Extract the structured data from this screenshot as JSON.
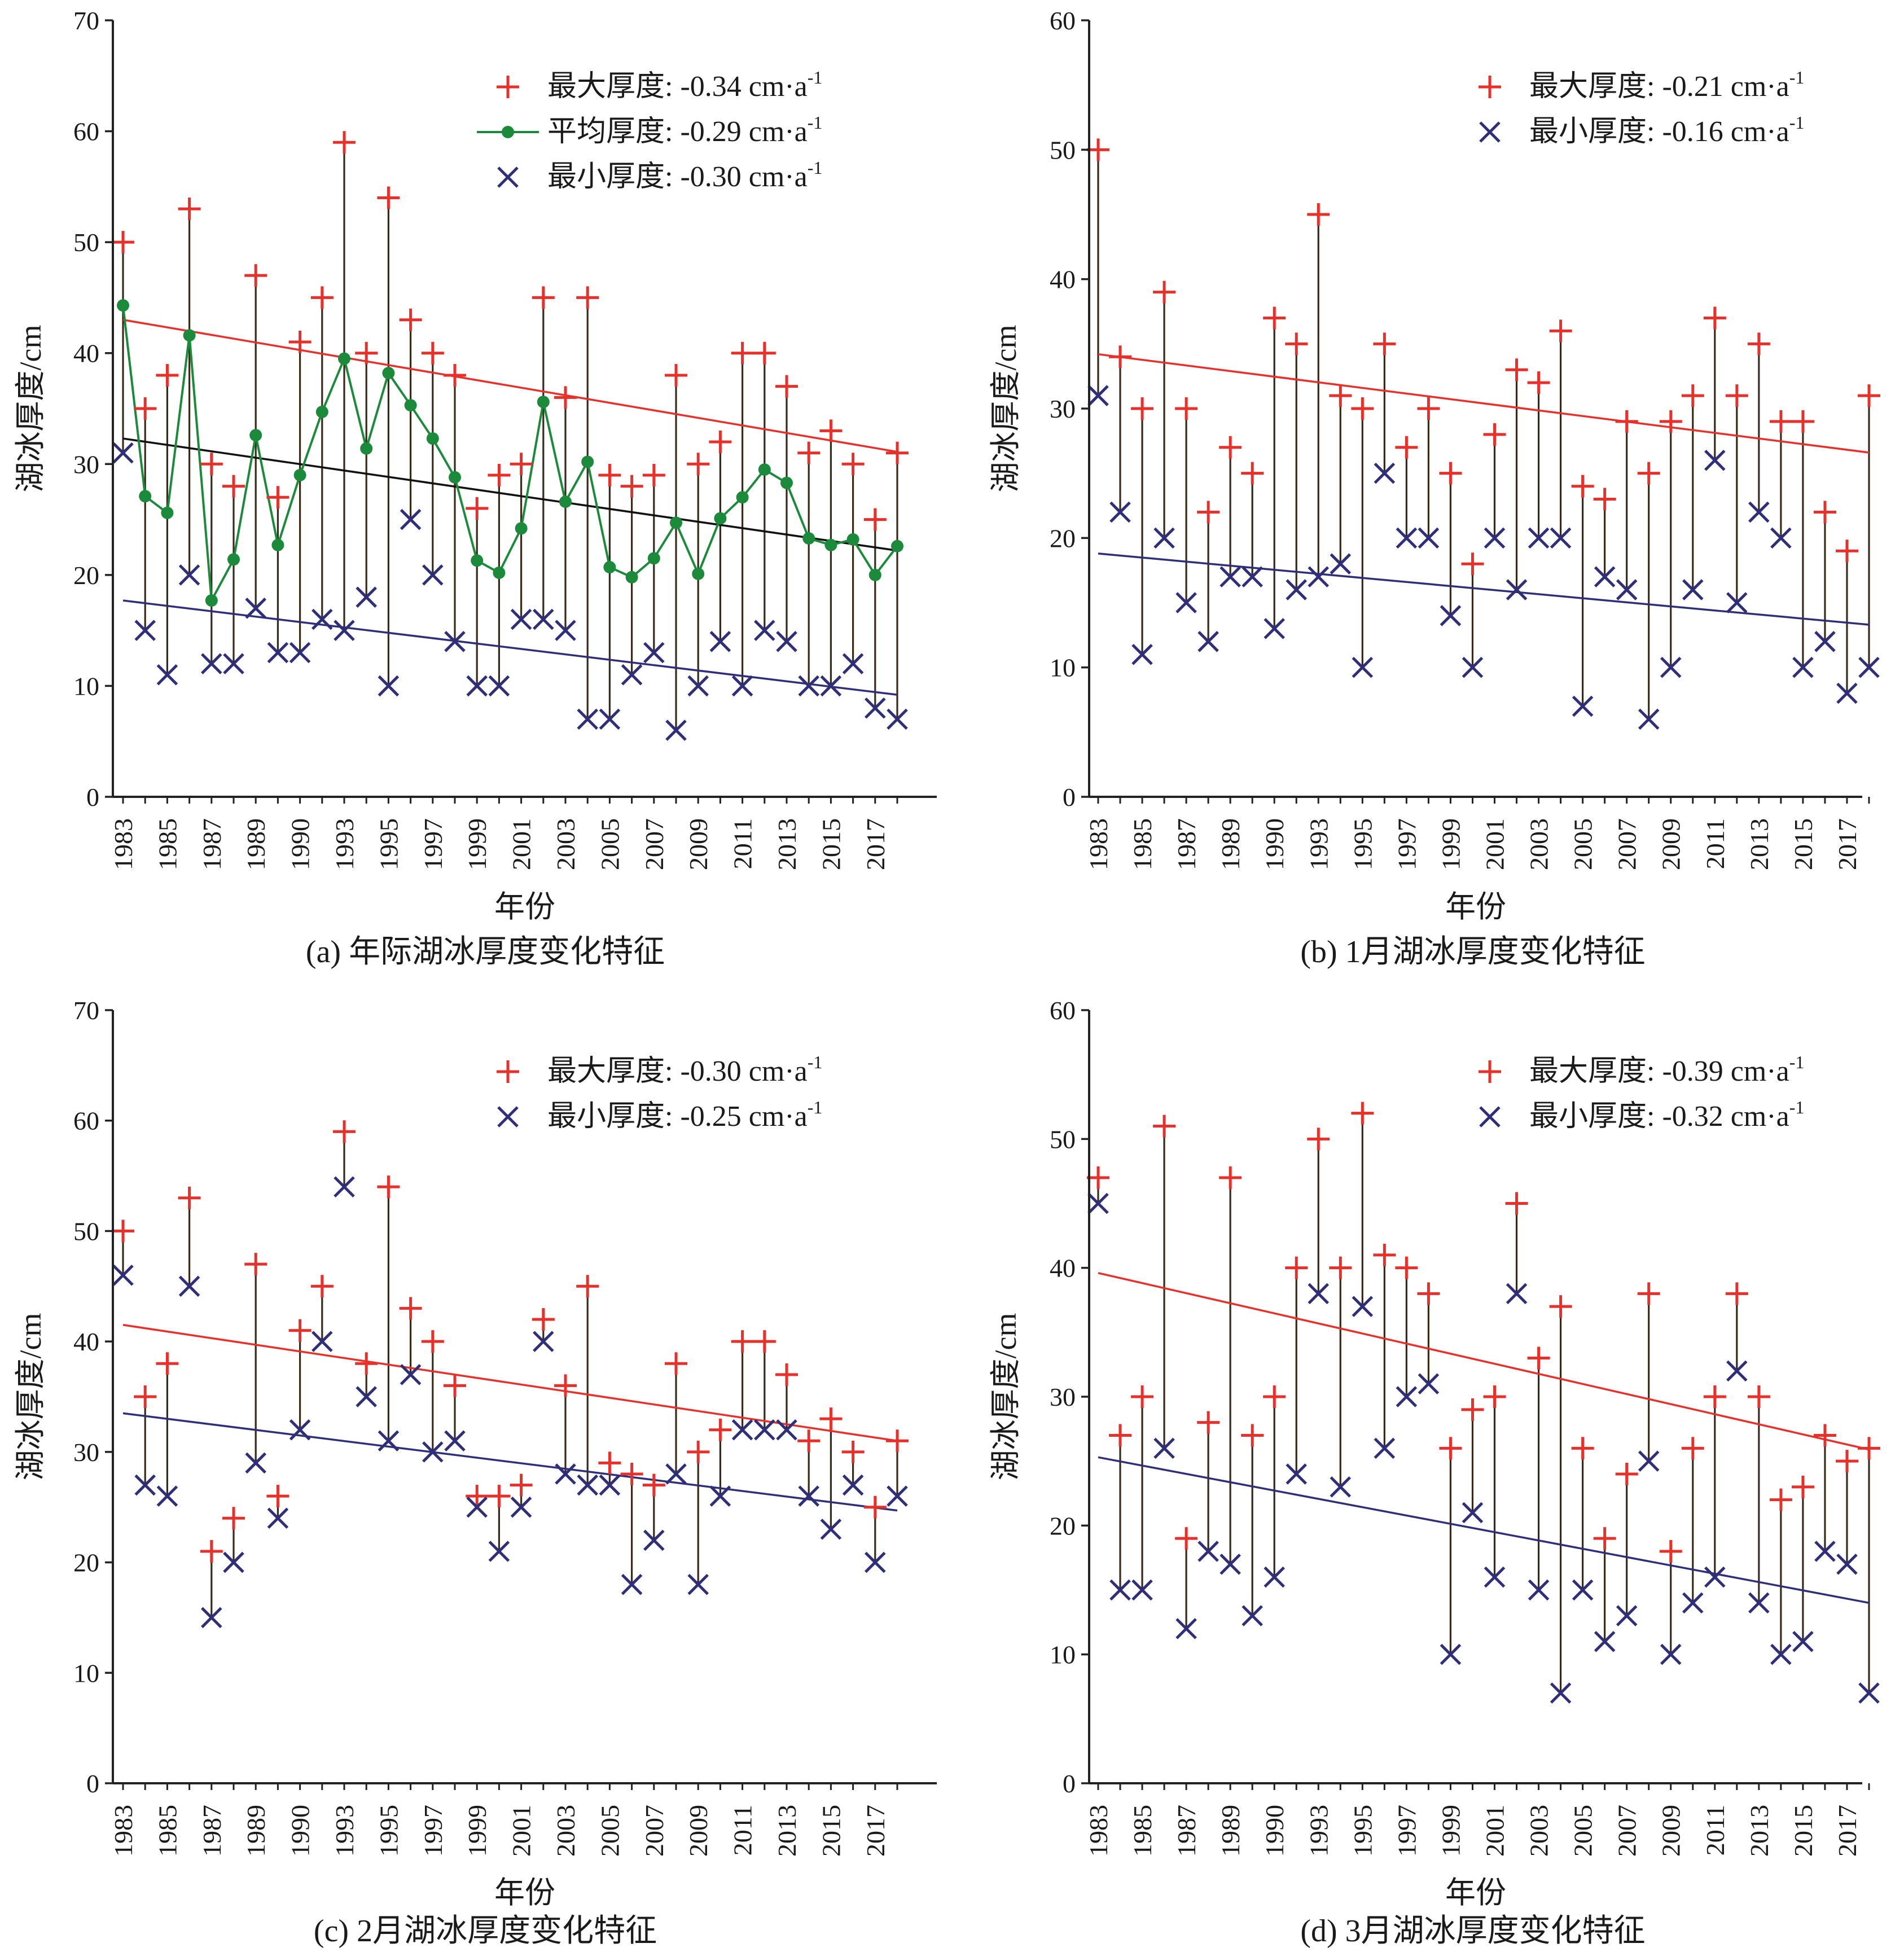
{
  "colors": {
    "max": "#e8302a",
    "min": "#2e2f78",
    "mean": "#1b8a3a",
    "mean_trend": "#111111",
    "stem": "#3a2a1a",
    "axis": "#222222"
  },
  "chart_data": [
    {
      "type": "scatter",
      "caption": "(a) 年际湖冰厚度变化特征",
      "xlabel": "年份",
      "ylabel": "湖冰厚度/cm",
      "ylim": [
        0,
        70
      ],
      "yticks": [
        0,
        10,
        20,
        30,
        40,
        50,
        60,
        70
      ],
      "xticks": [
        "1983",
        "1985",
        "1987",
        "1989",
        "1990",
        "1993",
        "1995",
        "1997",
        "1999",
        "2001",
        "2003",
        "2005",
        "2007",
        "2009",
        "2011",
        "2013",
        "2015",
        "2017"
      ],
      "grid": false,
      "legend_position": "top-right",
      "legend": [
        {
          "key": "max",
          "text": "最大厚度: -0.34 cm·a",
          "sup": "-1"
        },
        {
          "key": "mean",
          "text": "平均厚度: -0.29 cm·a",
          "sup": "-1"
        },
        {
          "key": "min",
          "text": "最小厚度: -0.30 cm·a",
          "sup": "-1"
        }
      ],
      "series": [
        {
          "key": "max",
          "marker": "plus",
          "values": [
            50,
            35,
            38,
            53,
            30,
            28,
            47,
            27,
            41,
            45,
            59,
            40,
            54,
            43,
            40,
            38,
            26,
            29,
            30,
            45,
            36,
            45,
            29,
            28,
            29,
            38,
            30,
            32,
            40,
            40,
            37,
            31,
            33,
            30,
            25,
            31
          ]
        },
        {
          "key": "mean",
          "marker": "dot-line",
          "values": [
            44.3,
            27.1,
            25.6,
            41.6,
            17.7,
            21.4,
            32.6,
            22.7,
            29.0,
            34.7,
            39.5,
            31.4,
            38.2,
            35.3,
            32.3,
            28.8,
            21.3,
            20.2,
            24.2,
            35.6,
            26.6,
            30.2,
            20.7,
            19.8,
            21.5,
            24.7,
            20.1,
            25.1,
            27.0,
            29.5,
            28.3,
            23.3,
            22.7,
            23.2,
            20.0,
            22.6
          ]
        },
        {
          "key": "min",
          "marker": "cross",
          "values": [
            31,
            15,
            11,
            20,
            12,
            12,
            17,
            13,
            13,
            16,
            15,
            18,
            10,
            25,
            20,
            14,
            10,
            10,
            16,
            16,
            15,
            7,
            7,
            11,
            13,
            6,
            10,
            14,
            10,
            15,
            14,
            10,
            10,
            12,
            8,
            7
          ]
        }
      ],
      "trends": [
        {
          "key": "max",
          "y_start": 43.0,
          "y_end": 31.1
        },
        {
          "key": "mean_trend",
          "y_start": 32.3,
          "y_end": 22.2
        },
        {
          "key": "min",
          "y_start": 17.7,
          "y_end": 9.2
        }
      ]
    },
    {
      "type": "scatter",
      "caption": "(b) 1月湖冰厚度变化特征",
      "xlabel": "年份",
      "ylabel": "湖冰厚度/cm",
      "ylim": [
        0,
        60
      ],
      "yticks": [
        0,
        10,
        20,
        30,
        40,
        50,
        60
      ],
      "xticks": [
        "1983",
        "1985",
        "1987",
        "1989",
        "1990",
        "1993",
        "1995",
        "1997",
        "1999",
        "2001",
        "2003",
        "2005",
        "2007",
        "2009",
        "2011",
        "2013",
        "2015",
        "2017"
      ],
      "grid": false,
      "legend_position": "top-right",
      "legend": [
        {
          "key": "max",
          "text": "最大厚度: -0.21 cm·a",
          "sup": "-1"
        },
        {
          "key": "min",
          "text": "最小厚度: -0.16 cm·a",
          "sup": "-1"
        }
      ],
      "series": [
        {
          "key": "max",
          "marker": "plus",
          "values": [
            50,
            34,
            30,
            39,
            30,
            22,
            27,
            25,
            37,
            35,
            45,
            31,
            30,
            35,
            27,
            30,
            25,
            18,
            28,
            33,
            32,
            36,
            24,
            23,
            29,
            25,
            29,
            31,
            37,
            31,
            35,
            29,
            29,
            22,
            19,
            31
          ]
        },
        {
          "key": "min",
          "marker": "cross",
          "values": [
            31,
            22,
            11,
            20,
            15,
            12,
            17,
            17,
            13,
            16,
            17,
            18,
            10,
            25,
            20,
            20,
            14,
            10,
            20,
            16,
            20,
            20,
            7,
            17,
            16,
            6,
            10,
            16,
            26,
            15,
            22,
            20,
            10,
            12,
            8,
            10
          ]
        }
      ],
      "trends": [
        {
          "key": "max",
          "y_start": 34.2,
          "y_end": 26.6
        },
        {
          "key": "min",
          "y_start": 18.8,
          "y_end": 13.3
        }
      ]
    },
    {
      "type": "scatter",
      "caption": "(c) 2月湖冰厚度变化特征",
      "xlabel": "年份",
      "ylabel": "湖冰厚度/cm",
      "ylim": [
        0,
        70
      ],
      "yticks": [
        0,
        10,
        20,
        30,
        40,
        50,
        60,
        70
      ],
      "xticks": [
        "1983",
        "1985",
        "1987",
        "1989",
        "1990",
        "1993",
        "1995",
        "1997",
        "1999",
        "2001",
        "2003",
        "2005",
        "2007",
        "2009",
        "2011",
        "2013",
        "2015",
        "2017"
      ],
      "grid": false,
      "legend_position": "top-right",
      "legend": [
        {
          "key": "max",
          "text": "最大厚度: -0.30 cm·a",
          "sup": "-1"
        },
        {
          "key": "min",
          "text": "最小厚度: -0.25 cm·a",
          "sup": "-1"
        }
      ],
      "series": [
        {
          "key": "max",
          "marker": "plus",
          "values": [
            50,
            35,
            38,
            53,
            21,
            24,
            47,
            26,
            41,
            45,
            59,
            38,
            54,
            43,
            40,
            36,
            26,
            26,
            27,
            42,
            36,
            45,
            29,
            28,
            27,
            38,
            30,
            32,
            40,
            40,
            37,
            31,
            33,
            30,
            25,
            31
          ]
        },
        {
          "key": "min",
          "marker": "cross",
          "values": [
            46,
            27,
            26,
            45,
            15,
            20,
            29,
            24,
            32,
            40,
            54,
            35,
            31,
            37,
            30,
            31,
            25,
            21,
            25,
            40,
            28,
            27,
            27,
            18,
            22,
            28,
            18,
            26,
            32,
            32,
            32,
            26,
            23,
            27,
            20,
            26
          ]
        }
      ],
      "trends": [
        {
          "key": "max",
          "y_start": 41.5,
          "y_end": 31.0
        },
        {
          "key": "min",
          "y_start": 33.5,
          "y_end": 24.7
        }
      ]
    },
    {
      "type": "scatter",
      "caption": "(d) 3月湖冰厚度变化特征",
      "xlabel": "年份",
      "ylabel": "湖冰厚度/cm",
      "ylim": [
        0,
        60
      ],
      "yticks": [
        0,
        10,
        20,
        30,
        40,
        50,
        60
      ],
      "xticks": [
        "1983",
        "1985",
        "1987",
        "1989",
        "1990",
        "1993",
        "1995",
        "1997",
        "1999",
        "2001",
        "2003",
        "2005",
        "2007",
        "2009",
        "2011",
        "2013",
        "2015",
        "2017"
      ],
      "grid": false,
      "legend_position": "top-right",
      "legend": [
        {
          "key": "max",
          "text": "最大厚度: -0.39 cm·a",
          "sup": "-1"
        },
        {
          "key": "min",
          "text": "最小厚度: -0.32 cm·a",
          "sup": "-1"
        }
      ],
      "series": [
        {
          "key": "max",
          "marker": "plus",
          "values": [
            47,
            27,
            30,
            51,
            19,
            28,
            47,
            27,
            30,
            40,
            50,
            40,
            52,
            41,
            40,
            38,
            26,
            29,
            30,
            45,
            33,
            37,
            26,
            19,
            24,
            38,
            18,
            26,
            30,
            38,
            30,
            22,
            23,
            27,
            25,
            26
          ]
        },
        {
          "key": "min",
          "marker": "cross",
          "values": [
            45,
            15,
            15,
            26,
            12,
            18,
            17,
            13,
            16,
            24,
            38,
            23,
            37,
            26,
            30,
            31,
            10,
            21,
            16,
            38,
            15,
            7,
            15,
            11,
            13,
            25,
            10,
            14,
            16,
            32,
            14,
            10,
            11,
            18,
            17,
            7
          ]
        }
      ],
      "trends": [
        {
          "key": "max",
          "y_start": 39.6,
          "y_end": 25.9
        },
        {
          "key": "min",
          "y_start": 25.3,
          "y_end": 14.0
        }
      ]
    }
  ]
}
